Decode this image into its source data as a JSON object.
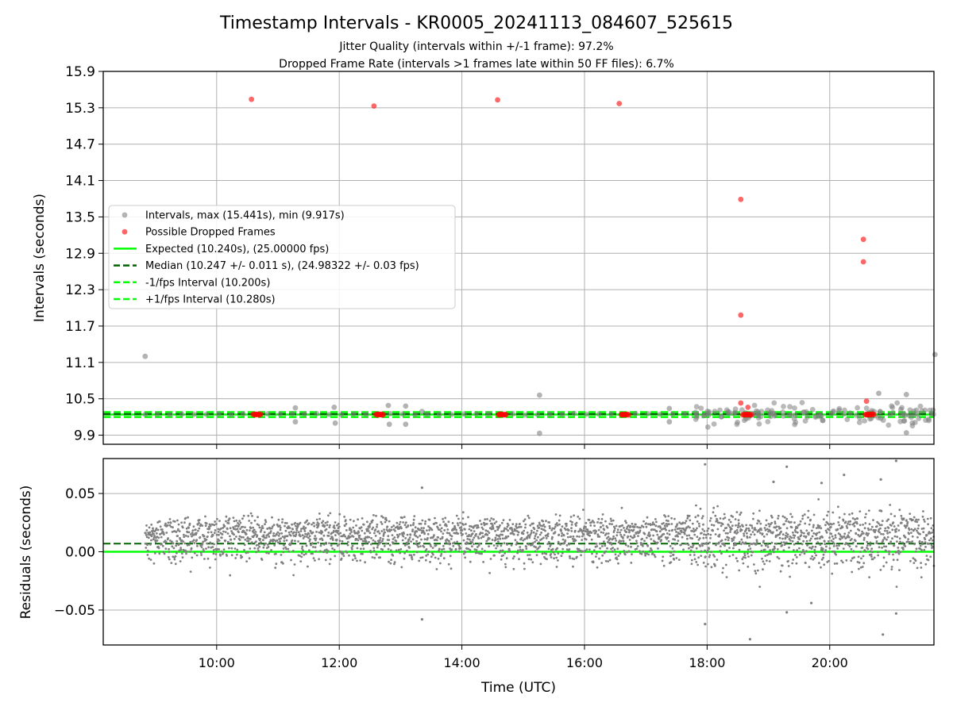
{
  "figure": {
    "title": "Timestamp Intervals - KR0005_20241113_084607_525615",
    "subtitle_line1": "Jitter Quality (intervals within +/-1 frame): 97.2%",
    "subtitle_line2": "Dropped Frame Rate (intervals >1 frames late within 50 FF files): 6.7%"
  },
  "colors": {
    "intervals": "#808080",
    "dropped": "#ff0000",
    "expected": "#00ff00",
    "median": "#006400",
    "fps_band": "#00ff00",
    "grid": "#b0b0b0"
  },
  "chart_data": [
    {
      "type": "scatter",
      "panel": "top",
      "ylabel": "Intervals (seconds)",
      "xlabel": "",
      "ylim": [
        9.75,
        15.9
      ],
      "xlim_hours": [
        8.15,
        21.7
      ],
      "y_ticks": [
        "9.9",
        "10.5",
        "11.1",
        "11.7",
        "12.3",
        "12.9",
        "13.5",
        "14.1",
        "14.7",
        "15.3",
        "15.9"
      ],
      "x_ticks": [
        "10:00",
        "12:00",
        "14:00",
        "16:00",
        "18:00",
        "20:00"
      ],
      "grid": true,
      "legend_position": "center-left",
      "legend": [
        {
          "label": "Intervals, max (15.441s), min (9.917s)",
          "marker": "dot",
          "color": "#808080"
        },
        {
          "label": "Possible Dropped Frames",
          "marker": "dot",
          "color": "#ff0000"
        },
        {
          "label": "Expected (10.240s), (25.00000 fps)",
          "marker": "solid",
          "color": "#00ff00"
        },
        {
          "label": "Median (10.247 +/- 0.011 s), (24.98322 +/- 0.03 fps)",
          "marker": "dashed",
          "color": "#006400"
        },
        {
          "label": "-1/fps Interval (10.200s)",
          "marker": "dashed",
          "color": "#00ff00"
        },
        {
          "label": "+1/fps Interval (10.280s)",
          "marker": "dashed",
          "color": "#00ff00"
        }
      ],
      "reference_lines": {
        "expected": 10.24,
        "median": 10.247,
        "minus_one_frame": 10.2,
        "plus_one_frame": 10.28
      },
      "dropped_points": [
        {
          "time": "10:34",
          "value": 15.44
        },
        {
          "time": "12:34",
          "value": 15.33
        },
        {
          "time": "14:35",
          "value": 15.43
        },
        {
          "time": "16:34",
          "value": 15.37
        },
        {
          "time": "18:33",
          "value": 13.79
        },
        {
          "time": "18:33",
          "value": 11.88
        },
        {
          "time": "18:33",
          "value": 10.43
        },
        {
          "time": "18:40",
          "value": 10.36
        },
        {
          "time": "20:33",
          "value": 13.13
        },
        {
          "time": "20:33",
          "value": 12.76
        },
        {
          "time": "20:36",
          "value": 10.46
        }
      ],
      "dropped_clusters": [
        {
          "start": "10:36",
          "end": "10:43",
          "value": 10.24
        },
        {
          "start": "12:36",
          "end": "12:43",
          "value": 10.24
        },
        {
          "start": "14:36",
          "end": "14:43",
          "value": 10.24
        },
        {
          "start": "16:36",
          "end": "16:43",
          "value": 10.24
        },
        {
          "start": "18:35",
          "end": "18:43",
          "value": 10.24
        },
        {
          "start": "20:35",
          "end": "20:43",
          "value": 10.24
        }
      ],
      "outlier_points": [
        {
          "time": "08:50",
          "value": 11.2
        },
        {
          "time": "21:43",
          "value": 11.23
        },
        {
          "time": "15:16",
          "value": 10.56
        },
        {
          "time": "15:16",
          "value": 9.93
        },
        {
          "time": "11:17",
          "value": 10.35
        },
        {
          "time": "11:17",
          "value": 10.12
        },
        {
          "time": "11:55",
          "value": 10.36
        },
        {
          "time": "11:56",
          "value": 10.1
        },
        {
          "time": "12:48",
          "value": 10.39
        },
        {
          "time": "12:49",
          "value": 10.08
        },
        {
          "time": "13:05",
          "value": 10.38
        },
        {
          "time": "13:05",
          "value": 10.08
        },
        {
          "time": "13:21",
          "value": 10.29
        },
        {
          "time": "17:23",
          "value": 10.34
        },
        {
          "time": "17:23",
          "value": 10.12
        },
        {
          "time": "21:15",
          "value": 10.57
        },
        {
          "time": "21:15",
          "value": 9.94
        },
        {
          "time": "20:48",
          "value": 10.59
        }
      ]
    },
    {
      "type": "scatter",
      "panel": "bottom",
      "ylabel": "Residuals (seconds)",
      "xlabel": "Time (UTC)",
      "ylim": [
        -0.08,
        0.08
      ],
      "xlim_hours": [
        8.15,
        21.7
      ],
      "y_ticks": [
        "−0.05",
        "0.00",
        "0.05"
      ],
      "x_ticks": [
        "10:00",
        "12:00",
        "14:00",
        "16:00",
        "18:00",
        "20:00"
      ],
      "grid": true,
      "reference_lines": {
        "expected": 0.0,
        "median": 0.007
      },
      "time_range": [
        "08:50",
        "21:42"
      ],
      "band_low": -0.012,
      "band_high": 0.03,
      "notable_points": [
        {
          "time": "13:21",
          "value": 0.055
        },
        {
          "time": "13:21",
          "value": -0.058
        },
        {
          "time": "17:58",
          "value": 0.075
        },
        {
          "time": "17:58",
          "value": -0.062
        },
        {
          "time": "19:05",
          "value": 0.06
        },
        {
          "time": "19:18",
          "value": 0.073
        },
        {
          "time": "19:18",
          "value": -0.052
        },
        {
          "time": "19:42",
          "value": -0.044
        },
        {
          "time": "20:14",
          "value": 0.066
        },
        {
          "time": "21:05",
          "value": 0.078
        },
        {
          "time": "21:05",
          "value": -0.053
        },
        {
          "time": "18:42",
          "value": -0.075
        },
        {
          "time": "19:52",
          "value": 0.059
        },
        {
          "time": "20:50",
          "value": 0.062
        },
        {
          "time": "20:52",
          "value": -0.071
        }
      ]
    }
  ]
}
